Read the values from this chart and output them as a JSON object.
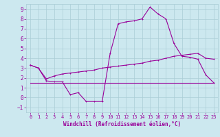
{
  "xlabel": "Windchill (Refroidissement éolien,°C)",
  "ylabel": "",
  "bg_color": "#cce8ef",
  "grid_color": "#aacdd6",
  "line_color": "#990099",
  "xlim": [
    -0.5,
    23.5
  ],
  "ylim": [
    -1.5,
    9.5
  ],
  "xticks": [
    0,
    1,
    2,
    3,
    4,
    5,
    6,
    7,
    8,
    9,
    10,
    11,
    12,
    13,
    14,
    15,
    16,
    17,
    18,
    19,
    20,
    21,
    22,
    23
  ],
  "yticks": [
    -1,
    0,
    1,
    2,
    3,
    4,
    5,
    6,
    7,
    8,
    9
  ],
  "line1_x": [
    0,
    1,
    2,
    3,
    4,
    5,
    6,
    7,
    8,
    9,
    10,
    11,
    12,
    13,
    14,
    15,
    16,
    17,
    18,
    19,
    20,
    21,
    22,
    23
  ],
  "line1_y": [
    3.3,
    3.0,
    1.7,
    1.6,
    1.6,
    0.3,
    0.5,
    -0.4,
    -0.4,
    -0.4,
    4.5,
    7.5,
    7.7,
    7.8,
    8.0,
    9.2,
    8.5,
    8.0,
    5.5,
    4.2,
    4.1,
    3.9,
    2.3,
    1.5
  ],
  "line2_x": [
    0,
    23
  ],
  "line2_y": [
    1.5,
    1.5
  ],
  "line3_x": [
    0,
    1,
    2,
    3,
    4,
    5,
    6,
    7,
    8,
    9,
    10,
    11,
    12,
    13,
    14,
    15,
    16,
    17,
    18,
    19,
    20,
    21,
    22,
    23
  ],
  "line3_y": [
    3.3,
    3.0,
    1.9,
    2.2,
    2.4,
    2.5,
    2.6,
    2.7,
    2.8,
    3.0,
    3.1,
    3.2,
    3.3,
    3.4,
    3.5,
    3.7,
    3.8,
    4.0,
    4.2,
    4.3,
    4.4,
    4.5,
    4.0,
    3.9
  ],
  "line1_lw": 0.8,
  "line2_lw": 0.8,
  "line3_lw": 0.8,
  "marker_size": 2.0,
  "tick_fontsize": 5.0,
  "xlabel_fontsize": 5.5
}
